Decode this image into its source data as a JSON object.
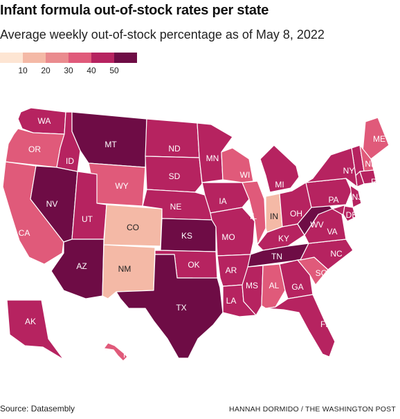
{
  "title": "Infant formula out-of-stock rates per state",
  "subtitle": "Average weekly out-of-stock percentage as of May 8, 2022",
  "source": "Source: Datasembly",
  "credit": "HANNAH DORMIDO / THE WASHINGTON POST",
  "legend": {
    "bins": [
      {
        "label": "10",
        "color": "#fde5d3"
      },
      {
        "label": "20",
        "color": "#f4b9a6"
      },
      {
        "label": "30",
        "color": "#ea8b8e"
      },
      {
        "label": "40",
        "color": "#e05a7a"
      },
      {
        "label": "50",
        "color": "#b62360"
      },
      {
        "label": "",
        "color": "#6e0c45"
      }
    ]
  },
  "chart_data": {
    "type": "choropleth",
    "title": "Infant formula out-of-stock rates per state",
    "subtitle": "Average weekly out-of-stock percentage as of May 8, 2022",
    "bin_edges": [
      0,
      10,
      20,
      30,
      40,
      50,
      60
    ],
    "states": [
      {
        "abbr": "WA",
        "bin": 4
      },
      {
        "abbr": "OR",
        "bin": 3
      },
      {
        "abbr": "CA",
        "bin": 3
      },
      {
        "abbr": "NV",
        "bin": 5
      },
      {
        "abbr": "ID",
        "bin": 4
      },
      {
        "abbr": "MT",
        "bin": 5
      },
      {
        "abbr": "WY",
        "bin": 3
      },
      {
        "abbr": "UT",
        "bin": 4
      },
      {
        "abbr": "AZ",
        "bin": 5
      },
      {
        "abbr": "CO",
        "bin": 1
      },
      {
        "abbr": "NM",
        "bin": 1
      },
      {
        "abbr": "ND",
        "bin": 4
      },
      {
        "abbr": "SD",
        "bin": 4
      },
      {
        "abbr": "NE",
        "bin": 4
      },
      {
        "abbr": "KS",
        "bin": 5
      },
      {
        "abbr": "OK",
        "bin": 4
      },
      {
        "abbr": "TX",
        "bin": 5
      },
      {
        "abbr": "MN",
        "bin": 4
      },
      {
        "abbr": "IA",
        "bin": 4
      },
      {
        "abbr": "MO",
        "bin": 4
      },
      {
        "abbr": "AR",
        "bin": 4
      },
      {
        "abbr": "LA",
        "bin": 4
      },
      {
        "abbr": "WI",
        "bin": 3
      },
      {
        "abbr": "IL",
        "bin": 3
      },
      {
        "abbr": "MI",
        "bin": 4
      },
      {
        "abbr": "IN",
        "bin": 1
      },
      {
        "abbr": "OH",
        "bin": 4
      },
      {
        "abbr": "KY",
        "bin": 4
      },
      {
        "abbr": "TN",
        "bin": 5
      },
      {
        "abbr": "MS",
        "bin": 4
      },
      {
        "abbr": "AL",
        "bin": 3
      },
      {
        "abbr": "GA",
        "bin": 4
      },
      {
        "abbr": "FL",
        "bin": 4
      },
      {
        "abbr": "SC",
        "bin": 3
      },
      {
        "abbr": "NC",
        "bin": 4
      },
      {
        "abbr": "VA",
        "bin": 4
      },
      {
        "abbr": "WV",
        "bin": 5
      },
      {
        "abbr": "PA",
        "bin": 4
      },
      {
        "abbr": "NY",
        "bin": 4
      },
      {
        "abbr": "ME",
        "bin": 3
      },
      {
        "abbr": "NH",
        "bin": 3
      },
      {
        "abbr": "RI",
        "bin": 4
      },
      {
        "abbr": "NJ",
        "bin": 4
      },
      {
        "abbr": "DE",
        "bin": 4
      },
      {
        "abbr": "AK",
        "bin": 4
      },
      {
        "abbr": "HI",
        "bin": 3
      }
    ]
  }
}
